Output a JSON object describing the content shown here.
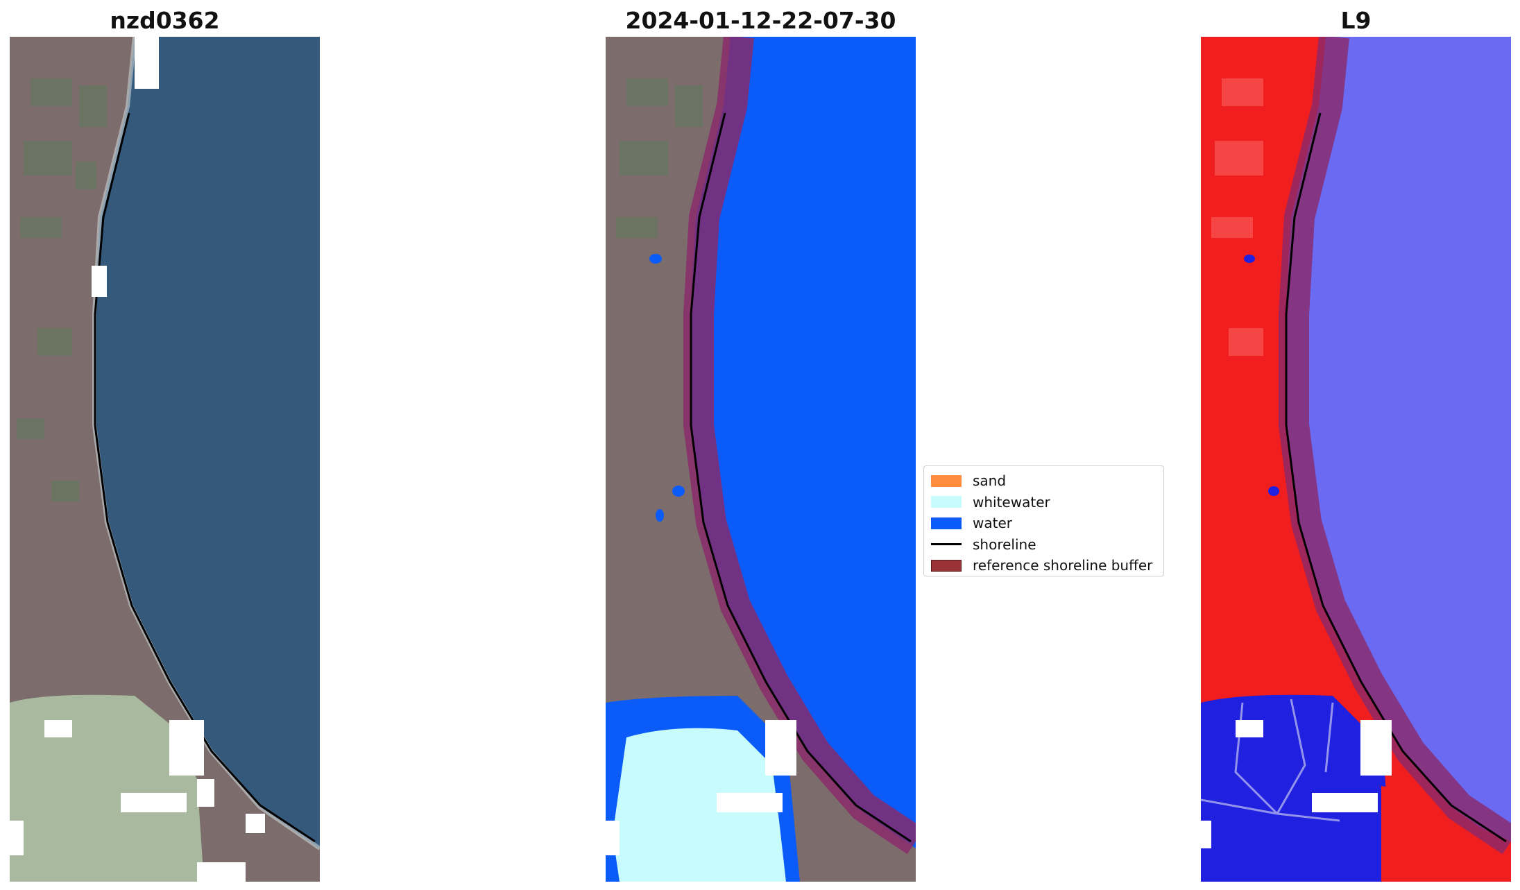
{
  "panels": [
    {
      "title": "nzd0362"
    },
    {
      "title": "2024-01-12-22-07-30"
    },
    {
      "title": "L9"
    }
  ],
  "legend": {
    "items": [
      {
        "label": "sand",
        "color": "#ff8c3f",
        "kind": "patch"
      },
      {
        "label": "whitewater",
        "color": "#c8fbfb",
        "kind": "patch"
      },
      {
        "label": "water",
        "color": "#0a5bf8",
        "kind": "patch"
      },
      {
        "label": "shoreline",
        "color": "#000000",
        "kind": "line"
      },
      {
        "label": "reference shoreline buffer",
        "color": "#9b3336",
        "kind": "patch"
      }
    ]
  },
  "colors": {
    "land": "#7d6c6c",
    "ocean": "#35597a",
    "lagoon": "#a8b9a0",
    "water_class": "#0a5bf8",
    "whitewater_class": "#c8fbfb",
    "buffer": "#8a2a6a",
    "index_land": "#f01e1e",
    "index_water": "#5b5bf0"
  }
}
